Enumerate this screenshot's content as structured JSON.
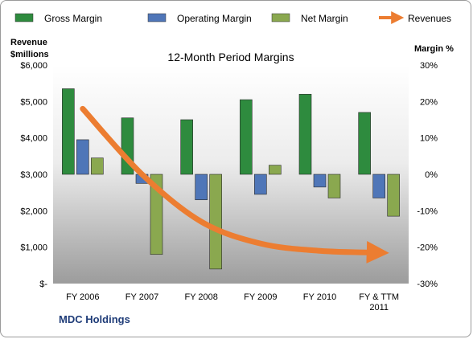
{
  "chart_data": {
    "type": "bar",
    "title": "12-Month Period Margins",
    "company": "MDC Holdings",
    "categories": [
      "FY 2006",
      "FY 2007",
      "FY 2008",
      "FY 2009",
      "FY 2010",
      "FY & TTM 2011"
    ],
    "y_left": {
      "title": [
        "Revenue",
        "$millions"
      ],
      "ticks": [
        "$6,000",
        "$5,000",
        "$4,000",
        "$3,000",
        "$2,000",
        "$1,000",
        "$-"
      ],
      "ylim": [
        0,
        6000
      ]
    },
    "y_right": {
      "title": "Margin %",
      "ticks": [
        "30%",
        "20%",
        "10%",
        "0%",
        "-10%",
        "-20%",
        "-30%"
      ],
      "ylim": [
        -30,
        30
      ]
    },
    "series": [
      {
        "name": "Gross Margin",
        "color": "#2e8b3e",
        "axis": "right",
        "values": [
          23.5,
          15.5,
          15,
          20.5,
          22,
          17
        ]
      },
      {
        "name": "Operating Margin",
        "color": "#4f76b8",
        "axis": "right",
        "values": [
          9.5,
          -2.5,
          -7,
          -5.5,
          -3.5,
          -6.5
        ]
      },
      {
        "name": "Net Margin",
        "color": "#8aa84f",
        "axis": "right",
        "values": [
          4.5,
          -22,
          -26,
          2.5,
          -6.5,
          -11.5
        ]
      },
      {
        "name": "Revenues",
        "color": "#ec7d31",
        "axis": "left",
        "type": "line",
        "values": [
          4800,
          3000,
          1700,
          1100,
          900,
          850
        ]
      }
    ],
    "legend_position": "top",
    "grid": false
  }
}
